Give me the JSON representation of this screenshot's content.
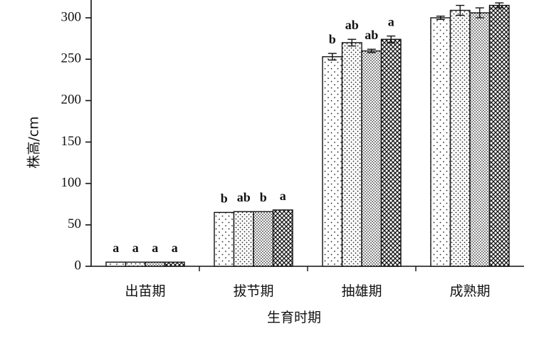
{
  "chart_data": {
    "type": "bar",
    "categories": [
      "出苗期",
      "拔节期",
      "抽雄期",
      "成熟期"
    ],
    "xlabel": "生育时期",
    "ylabel": "株高/cm",
    "ylim": [
      0,
      300
    ],
    "yticks": [
      0,
      50,
      100,
      150,
      200,
      250,
      300
    ],
    "grid": false,
    "legend": "none",
    "series": [
      {
        "values": [
          5,
          65,
          253,
          300
        ],
        "errors": [
          0.5,
          0.5,
          4,
          2
        ],
        "labels": [
          "a",
          "b",
          "b",
          ""
        ],
        "pattern": "sparse-dots"
      },
      {
        "values": [
          5,
          66,
          270,
          309
        ],
        "errors": [
          0.5,
          0.5,
          4,
          6
        ],
        "labels": [
          "a",
          "ab",
          "ab",
          ""
        ],
        "pattern": "dots"
      },
      {
        "values": [
          5,
          66,
          260,
          306
        ],
        "errors": [
          0.5,
          0.5,
          2,
          6
        ],
        "labels": [
          "a",
          "b",
          "ab",
          ""
        ],
        "pattern": "dense-dots"
      },
      {
        "values": [
          5,
          68,
          274,
          315
        ],
        "errors": [
          0.5,
          0.5,
          4,
          3
        ],
        "labels": [
          "a",
          "a",
          "a",
          ""
        ],
        "pattern": "crosshatch"
      }
    ]
  }
}
